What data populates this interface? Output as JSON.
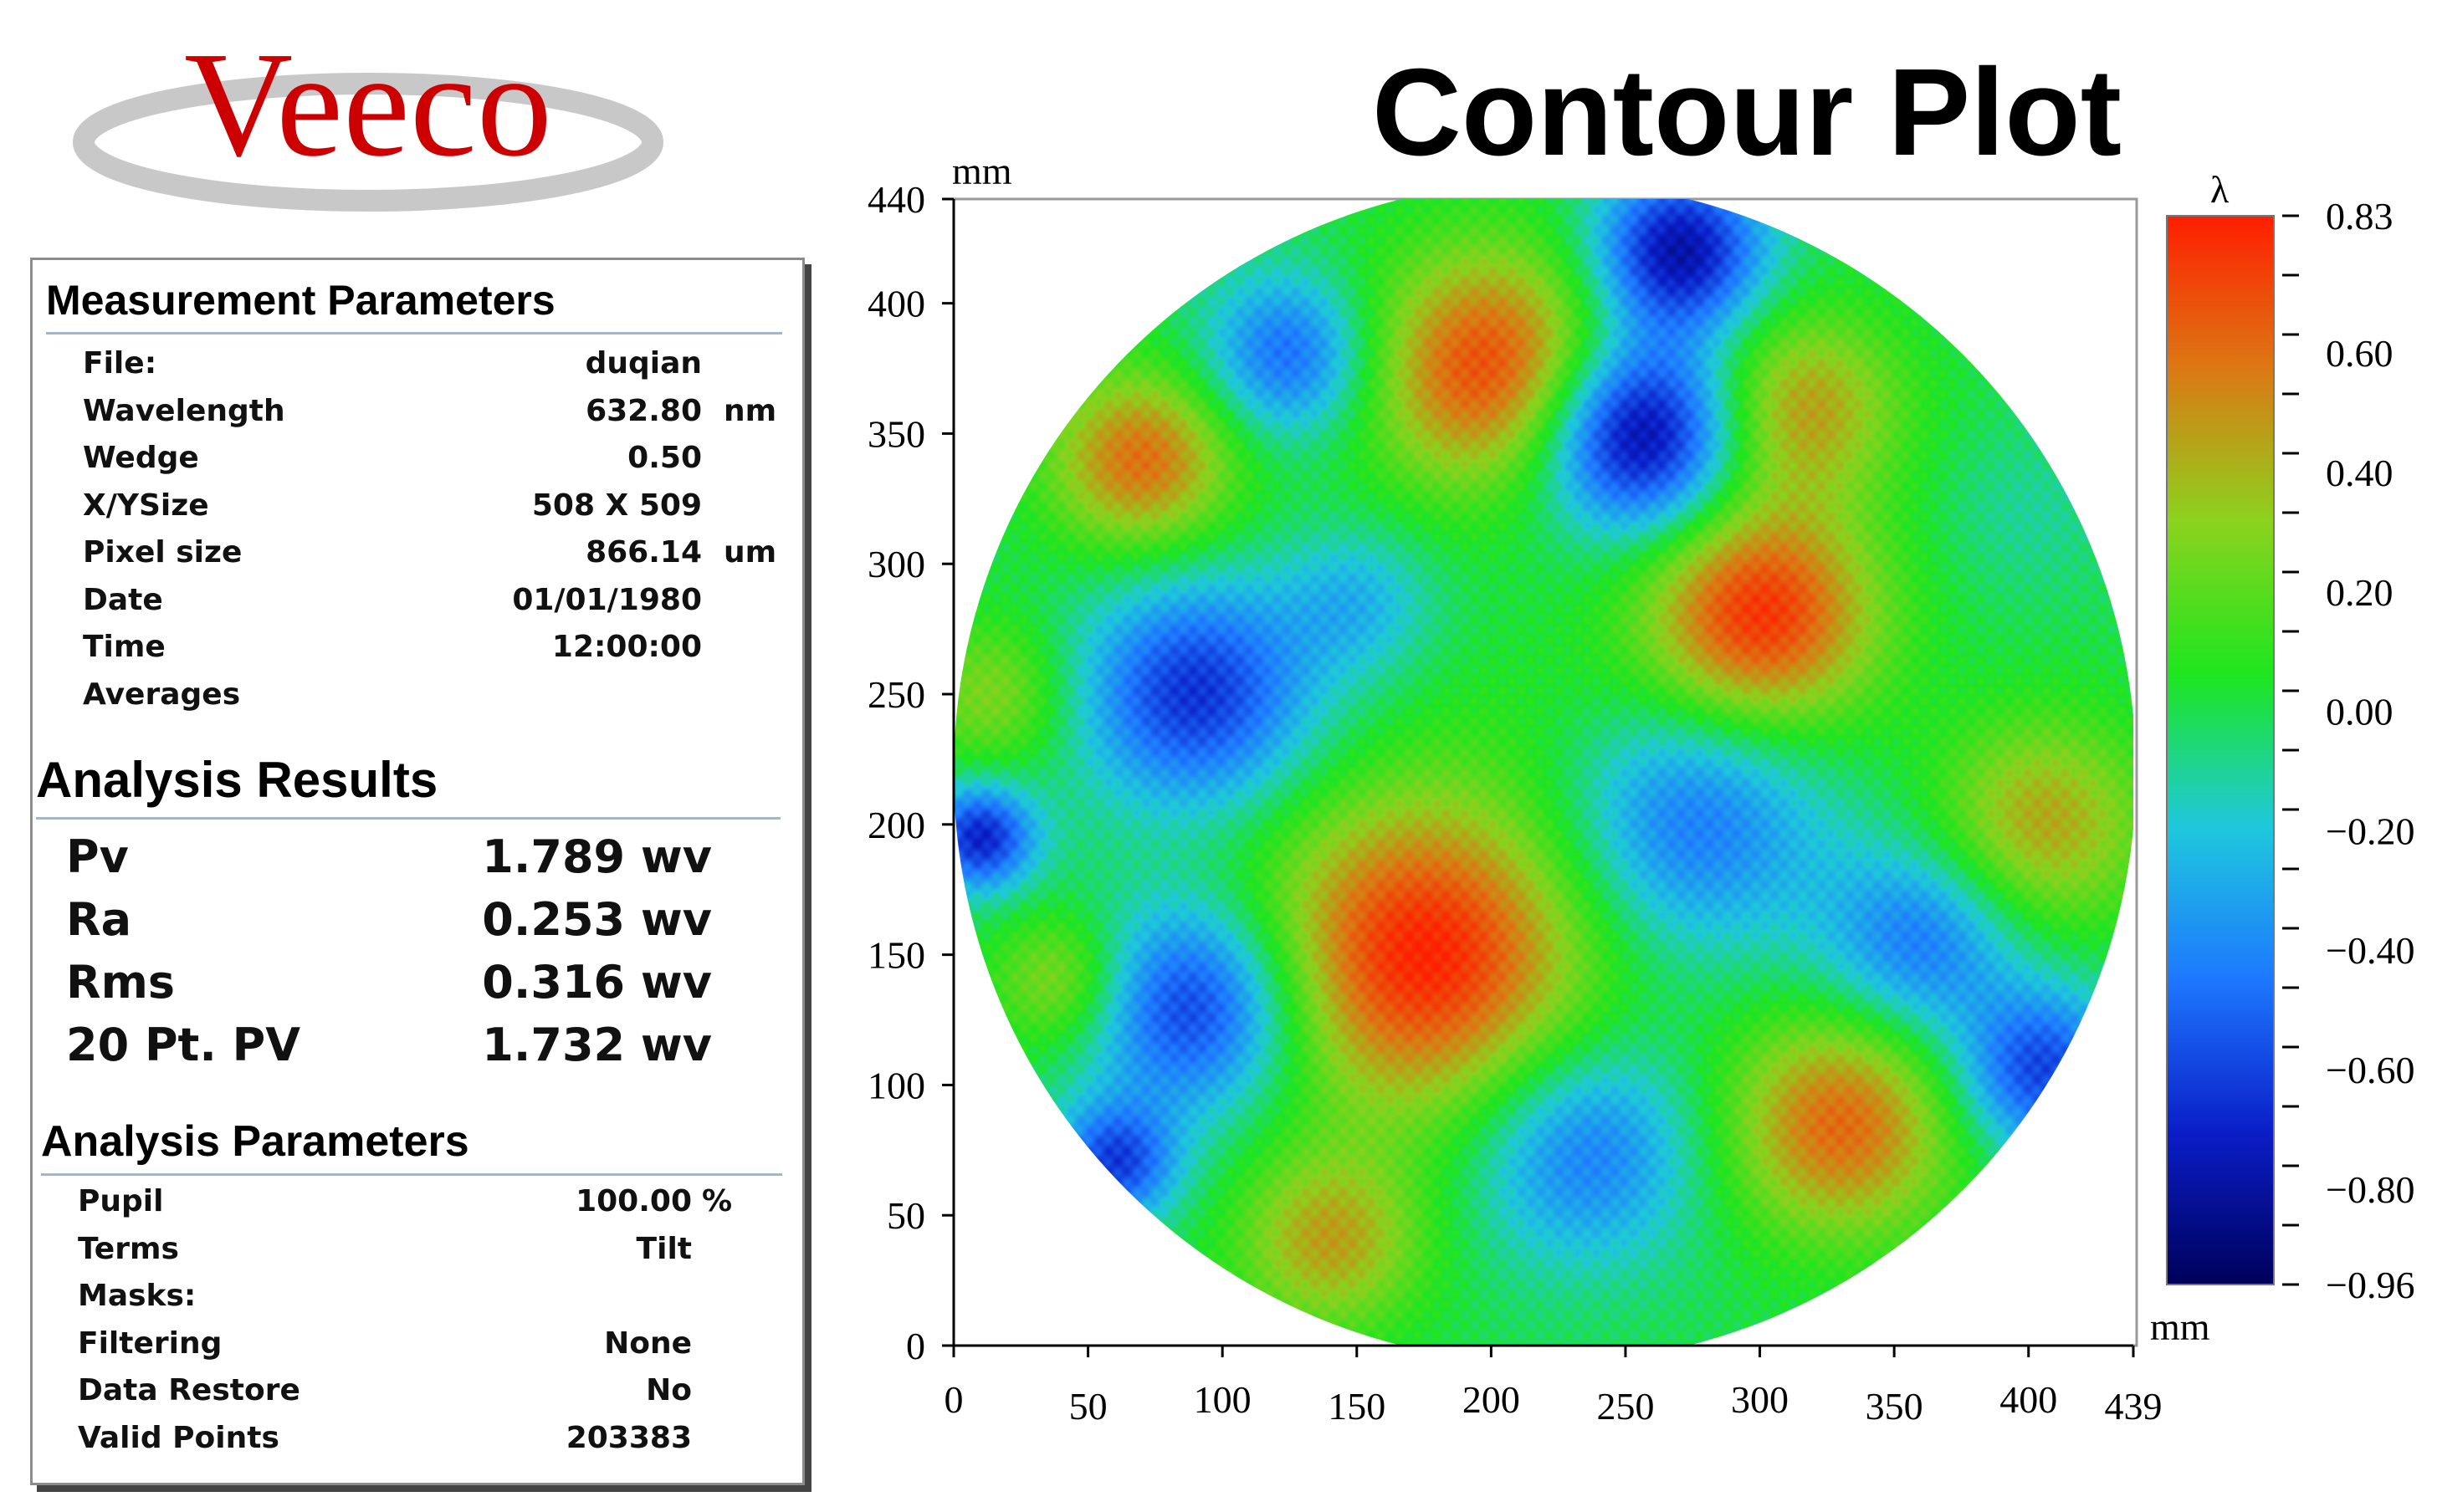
{
  "header": {
    "logo_text": "Veeco",
    "title": "Contour Plot"
  },
  "measurement_parameters": {
    "title": "Measurement Parameters",
    "rows": [
      {
        "label": "File:",
        "value": "duqian",
        "unit": ""
      },
      {
        "label": "Wavelength",
        "value": "632.80",
        "unit": "nm"
      },
      {
        "label": "Wedge",
        "value": "0.50",
        "unit": ""
      },
      {
        "label": "X/YSize",
        "value": "508 X 509",
        "unit": ""
      },
      {
        "label": "Pixel size",
        "value": "866.14",
        "unit": "um"
      },
      {
        "label": "Date",
        "value": "01/01/1980",
        "unit": ""
      },
      {
        "label": "Time",
        "value": "12:00:00",
        "unit": ""
      },
      {
        "label": "Averages",
        "value": "",
        "unit": ""
      }
    ]
  },
  "analysis_results": {
    "title": "Analysis Results",
    "rows": [
      {
        "label": "Pv",
        "value": "1.789 wv"
      },
      {
        "label": "Ra",
        "value": "0.253 wv"
      },
      {
        "label": "Rms",
        "value": "0.316 wv"
      },
      {
        "label": "20 Pt. PV",
        "value": "1.732 wv"
      }
    ]
  },
  "analysis_parameters": {
    "title": "Analysis Parameters",
    "rows": [
      {
        "label": "Pupil",
        "value": "100.00",
        "unit": "%"
      },
      {
        "label": "Terms",
        "value": "Tilt",
        "unit": ""
      },
      {
        "label": "Masks:",
        "value": "",
        "unit": ""
      },
      {
        "label": "Filtering",
        "value": "None",
        "unit": ""
      },
      {
        "label": "Data Restore",
        "value": "No",
        "unit": ""
      },
      {
        "label": "Valid Points",
        "value": "203383",
        "unit": ""
      }
    ]
  },
  "chart_data": {
    "type": "heatmap",
    "x_unit_label": "mm",
    "y_unit_label": "mm",
    "xlim": [
      0,
      439
    ],
    "ylim": [
      0,
      440
    ],
    "x_ticks": [
      "0",
      "50",
      "100",
      "150",
      "200",
      "250",
      "300",
      "350",
      "400",
      "439"
    ],
    "y_ticks": [
      "0",
      "50",
      "100",
      "150",
      "200",
      "250",
      "300",
      "350",
      "400",
      "440"
    ],
    "colorbar": {
      "unit_label": "λ",
      "range": [
        -0.96,
        0.83
      ],
      "tick_labels": [
        "0.83",
        "0.60",
        "0.40",
        "0.20",
        "0.00",
        "−0.20",
        "−0.40",
        "−0.60",
        "−0.80",
        "−0.96"
      ],
      "colors": [
        "#00005a",
        "#0a1ec8",
        "#1e78ff",
        "#1ec8dc",
        "#1ee61e",
        "#8cd21e",
        "#dc7814",
        "#ff1e00"
      ]
    },
    "aperture": {
      "center_x": 220,
      "center_y": 220,
      "radius": 220
    },
    "features": [
      {
        "x": 175,
        "y": 150,
        "value": 0.82,
        "spread": 42
      },
      {
        "x": 200,
        "y": 375,
        "value": 0.72,
        "spread": 32
      },
      {
        "x": 300,
        "y": 280,
        "value": 0.78,
        "spread": 30
      },
      {
        "x": 70,
        "y": 340,
        "value": 0.6,
        "spread": 24
      },
      {
        "x": 330,
        "y": 85,
        "value": 0.62,
        "spread": 30
      },
      {
        "x": 315,
        "y": 360,
        "value": 0.48,
        "spread": 26
      },
      {
        "x": 405,
        "y": 200,
        "value": 0.45,
        "spread": 28
      },
      {
        "x": 140,
        "y": 40,
        "value": 0.45,
        "spread": 24
      },
      {
        "x": 40,
        "y": 140,
        "value": 0.35,
        "spread": 18
      },
      {
        "x": 15,
        "y": 250,
        "value": 0.3,
        "spread": 20
      },
      {
        "x": 255,
        "y": 350,
        "value": -0.9,
        "spread": 26
      },
      {
        "x": 270,
        "y": 420,
        "value": -0.8,
        "spread": 22
      },
      {
        "x": 90,
        "y": 250,
        "value": -0.65,
        "spread": 30
      },
      {
        "x": 90,
        "y": 130,
        "value": -0.65,
        "spread": 28
      },
      {
        "x": 125,
        "y": 380,
        "value": -0.5,
        "spread": 22
      },
      {
        "x": 275,
        "y": 200,
        "value": -0.45,
        "spread": 34
      },
      {
        "x": 235,
        "y": 75,
        "value": -0.45,
        "spread": 30
      },
      {
        "x": 360,
        "y": 155,
        "value": -0.45,
        "spread": 26
      },
      {
        "x": 10,
        "y": 195,
        "value": -0.7,
        "spread": 14
      },
      {
        "x": 405,
        "y": 105,
        "value": -0.6,
        "spread": 22
      },
      {
        "x": 60,
        "y": 70,
        "value": -0.6,
        "spread": 16
      },
      {
        "x": 400,
        "y": 320,
        "value": -0.1,
        "spread": 24
      },
      {
        "x": 150,
        "y": 285,
        "value": -0.25,
        "spread": 20
      },
      {
        "x": 220,
        "y": 240,
        "value": 0.05,
        "spread": 30
      }
    ]
  }
}
